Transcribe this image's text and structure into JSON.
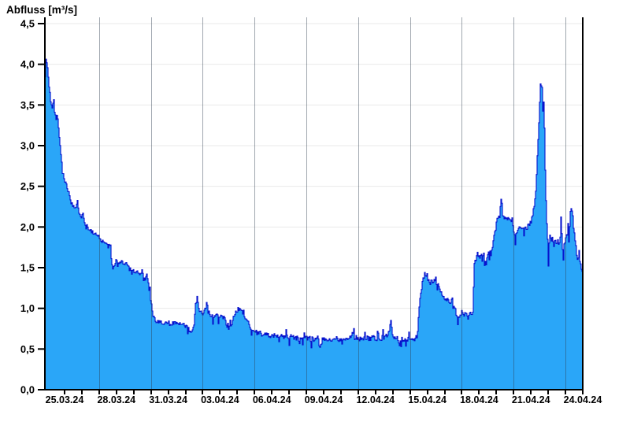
{
  "title": "Abfluss [m³/s]",
  "colors": {
    "area_fill": "#2aa6f8",
    "line": "#0713cd",
    "h_gridline": "#e9e9e9",
    "v_gridline": "rgba(45,60,78,0.45)",
    "axis": "#000000",
    "label_text": "#000000",
    "background": "#ffffff"
  },
  "chart_data": {
    "type": "area",
    "title": "Abfluss [m³/s]",
    "ylabel": "Abfluss [m³/s]",
    "xlabel": "",
    "legend": false,
    "grid": true,
    "y_axis": {
      "min": 0.0,
      "max": 4.5,
      "tick_step": 0.5,
      "tick_labels": [
        "0,0",
        "0,5",
        "1,0",
        "1,5",
        "2,0",
        "2,5",
        "3,0",
        "3,5",
        "4,0",
        "4,5"
      ]
    },
    "x_axis": {
      "tick_labels": [
        "25.03.24",
        "28.03.24",
        "31.03.24",
        "03.04.24",
        "06.04.24",
        "09.04.24",
        "12.04.24",
        "15.04.24",
        "18.04.24",
        "21.04.24",
        "24.04.24"
      ],
      "label_days": [
        0,
        3,
        6,
        9,
        12,
        15,
        18,
        21,
        24,
        27,
        30
      ],
      "gridline_days": [
        2,
        5,
        8,
        11,
        14,
        17,
        20,
        23,
        26,
        29
      ],
      "minor_tick_first_day": 0,
      "minor_tick_last_day": 30,
      "minor_tick_every_days": 1,
      "domain_days": [
        -1.14,
        30.0
      ]
    },
    "series": [
      {
        "name": "Abfluss",
        "unit": "m³/s",
        "points": [
          [
            -1.14,
            3.85
          ],
          [
            -1.09,
            4.08
          ],
          [
            -1.0,
            3.95
          ],
          [
            -0.91,
            3.72
          ],
          [
            -0.82,
            3.55
          ],
          [
            -0.73,
            3.48
          ],
          [
            -0.64,
            3.56
          ],
          [
            -0.59,
            3.4
          ],
          [
            -0.5,
            3.32
          ],
          [
            -0.46,
            3.45
          ],
          [
            -0.41,
            3.3
          ],
          [
            -0.32,
            3.1
          ],
          [
            -0.23,
            2.9
          ],
          [
            -0.14,
            2.72
          ],
          [
            -0.05,
            2.6
          ],
          [
            0.09,
            2.5
          ],
          [
            0.18,
            2.45
          ],
          [
            0.27,
            2.38
          ],
          [
            0.36,
            2.3
          ],
          [
            0.5,
            2.26
          ],
          [
            0.64,
            2.22
          ],
          [
            0.73,
            2.32
          ],
          [
            0.82,
            2.15
          ],
          [
            0.96,
            2.1
          ],
          [
            1.05,
            2.18
          ],
          [
            1.14,
            2.05
          ],
          [
            1.28,
            2.02
          ],
          [
            1.37,
            1.98
          ],
          [
            1.5,
            1.96
          ],
          [
            1.64,
            1.93
          ],
          [
            1.78,
            1.92
          ],
          [
            1.92,
            1.9
          ],
          [
            2.01,
            1.85
          ],
          [
            2.14,
            1.82
          ],
          [
            2.33,
            1.81
          ],
          [
            2.51,
            1.8
          ],
          [
            2.64,
            1.78
          ],
          [
            2.69,
            1.6
          ],
          [
            2.78,
            1.47
          ],
          [
            2.87,
            1.52
          ],
          [
            3.01,
            1.57
          ],
          [
            3.15,
            1.55
          ],
          [
            3.28,
            1.58
          ],
          [
            3.42,
            1.53
          ],
          [
            3.56,
            1.56
          ],
          [
            3.69,
            1.52
          ],
          [
            3.83,
            1.48
          ],
          [
            3.97,
            1.46
          ],
          [
            4.1,
            1.44
          ],
          [
            4.24,
            1.45
          ],
          [
            4.38,
            1.42
          ],
          [
            4.47,
            1.46
          ],
          [
            4.56,
            1.4
          ],
          [
            4.65,
            1.35
          ],
          [
            4.74,
            1.42
          ],
          [
            4.83,
            1.3
          ],
          [
            4.92,
            1.18
          ],
          [
            5.02,
            1.02
          ],
          [
            5.11,
            0.92
          ],
          [
            5.2,
            0.87
          ],
          [
            5.33,
            0.84
          ],
          [
            5.52,
            0.83
          ],
          [
            5.7,
            0.82
          ],
          [
            5.93,
            0.84
          ],
          [
            6.11,
            0.81
          ],
          [
            6.29,
            0.83
          ],
          [
            6.48,
            0.8
          ],
          [
            6.66,
            0.82
          ],
          [
            6.84,
            0.8
          ],
          [
            7.02,
            0.78
          ],
          [
            7.2,
            0.73
          ],
          [
            7.39,
            0.72
          ],
          [
            7.48,
            0.8
          ],
          [
            7.57,
            1.05
          ],
          [
            7.66,
            1.13
          ],
          [
            7.75,
            0.98
          ],
          [
            7.89,
            0.95
          ],
          [
            8.03,
            0.93
          ],
          [
            8.12,
            1.02
          ],
          [
            8.21,
            1.08
          ],
          [
            8.3,
            0.95
          ],
          [
            8.44,
            0.92
          ],
          [
            8.57,
            0.9
          ],
          [
            8.76,
            0.91
          ],
          [
            8.94,
            0.89
          ],
          [
            9.12,
            0.9
          ],
          [
            9.3,
            0.85
          ],
          [
            9.39,
            0.78
          ],
          [
            9.53,
            0.76
          ],
          [
            9.67,
            0.82
          ],
          [
            9.8,
            0.92
          ],
          [
            9.94,
            0.97
          ],
          [
            10.08,
            0.99
          ],
          [
            10.21,
            0.97
          ],
          [
            10.31,
            0.93
          ],
          [
            10.44,
            0.9
          ],
          [
            10.58,
            0.85
          ],
          [
            10.67,
            0.78
          ],
          [
            10.81,
            0.73
          ],
          [
            10.94,
            0.71
          ],
          [
            11.13,
            0.7
          ],
          [
            11.31,
            0.69
          ],
          [
            11.54,
            0.67
          ],
          [
            11.76,
            0.68
          ],
          [
            11.99,
            0.66
          ],
          [
            12.22,
            0.67
          ],
          [
            12.45,
            0.65
          ],
          [
            12.68,
            0.66
          ],
          [
            12.95,
            0.64
          ],
          [
            13.22,
            0.65
          ],
          [
            13.5,
            0.63
          ],
          [
            13.77,
            0.62
          ],
          [
            14.04,
            0.63
          ],
          [
            14.32,
            0.62
          ],
          [
            14.59,
            0.63
          ],
          [
            14.87,
            0.62
          ],
          [
            15.14,
            0.63
          ],
          [
            15.41,
            0.62
          ],
          [
            15.69,
            0.63
          ],
          [
            15.96,
            0.62
          ],
          [
            16.23,
            0.63
          ],
          [
            16.51,
            0.64
          ],
          [
            16.69,
            0.7
          ],
          [
            16.78,
            0.64
          ],
          [
            17.05,
            0.63
          ],
          [
            17.33,
            0.64
          ],
          [
            17.6,
            0.63
          ],
          [
            17.87,
            0.64
          ],
          [
            18.15,
            0.63
          ],
          [
            18.42,
            0.64
          ],
          [
            18.6,
            0.66
          ],
          [
            18.79,
            0.74
          ],
          [
            18.88,
            0.88
          ],
          [
            18.97,
            0.7
          ],
          [
            19.06,
            0.64
          ],
          [
            19.29,
            0.63
          ],
          [
            19.52,
            0.62
          ],
          [
            19.74,
            0.63
          ],
          [
            19.97,
            0.62
          ],
          [
            20.2,
            0.62
          ],
          [
            20.38,
            0.65
          ],
          [
            20.47,
            0.9
          ],
          [
            20.57,
            1.15
          ],
          [
            20.66,
            1.3
          ],
          [
            20.75,
            1.38
          ],
          [
            20.84,
            1.45
          ],
          [
            20.93,
            1.38
          ],
          [
            21.02,
            1.33
          ],
          [
            21.16,
            1.35
          ],
          [
            21.3,
            1.31
          ],
          [
            21.43,
            1.34
          ],
          [
            21.57,
            1.3
          ],
          [
            21.7,
            1.25
          ],
          [
            21.8,
            1.18
          ],
          [
            21.93,
            1.15
          ],
          [
            22.07,
            1.12
          ],
          [
            22.21,
            1.1
          ],
          [
            22.34,
            1.06
          ],
          [
            22.43,
            1.12
          ],
          [
            22.53,
            1.02
          ],
          [
            22.62,
            0.97
          ],
          [
            22.71,
            0.88
          ],
          [
            22.85,
            0.92
          ],
          [
            22.98,
            0.95
          ],
          [
            23.12,
            0.9
          ],
          [
            23.26,
            0.93
          ],
          [
            23.35,
            0.88
          ],
          [
            23.44,
            0.95
          ],
          [
            23.53,
            0.9
          ],
          [
            23.62,
            0.92
          ],
          [
            23.67,
            1.3
          ],
          [
            23.71,
            1.58
          ],
          [
            23.8,
            1.62
          ],
          [
            23.89,
            1.7
          ],
          [
            23.99,
            1.63
          ],
          [
            24.08,
            1.66
          ],
          [
            24.17,
            1.6
          ],
          [
            24.26,
            1.65
          ],
          [
            24.35,
            1.58
          ],
          [
            24.44,
            1.52
          ],
          [
            24.53,
            1.6
          ],
          [
            24.62,
            1.65
          ],
          [
            24.72,
            1.7
          ],
          [
            24.81,
            1.85
          ],
          [
            24.9,
            1.95
          ],
          [
            24.99,
            2.05
          ],
          [
            25.08,
            2.1
          ],
          [
            25.17,
            2.12
          ],
          [
            25.26,
            2.44
          ],
          [
            25.35,
            2.12
          ],
          [
            25.44,
            2.08
          ],
          [
            25.54,
            2.12
          ],
          [
            25.63,
            2.08
          ],
          [
            25.72,
            2.1
          ],
          [
            25.81,
            2.05
          ],
          [
            25.9,
            2.08
          ],
          [
            25.99,
            1.95
          ],
          [
            26.08,
            1.87
          ],
          [
            26.17,
            1.9
          ],
          [
            26.26,
            1.97
          ],
          [
            26.36,
            2.0
          ],
          [
            26.49,
            1.98
          ],
          [
            26.63,
            2.02
          ],
          [
            26.77,
            1.99
          ],
          [
            26.9,
            2.03
          ],
          [
            26.99,
            2.05
          ],
          [
            27.09,
            2.15
          ],
          [
            27.18,
            2.25
          ],
          [
            27.27,
            2.45
          ],
          [
            27.36,
            2.9
          ],
          [
            27.45,
            3.3
          ],
          [
            27.54,
            3.78
          ],
          [
            27.63,
            3.7
          ],
          [
            27.68,
            3.4
          ],
          [
            27.72,
            3.55
          ],
          [
            27.77,
            3.2
          ],
          [
            27.81,
            2.7
          ],
          [
            27.86,
            2.3
          ],
          [
            27.91,
            2.0
          ],
          [
            27.95,
            1.85
          ],
          [
            28.0,
            1.45
          ],
          [
            28.04,
            1.85
          ],
          [
            28.13,
            1.9
          ],
          [
            28.23,
            1.82
          ],
          [
            28.32,
            1.88
          ],
          [
            28.41,
            1.8
          ],
          [
            28.5,
            1.85
          ],
          [
            28.59,
            1.78
          ],
          [
            28.68,
            1.9
          ],
          [
            28.73,
            2.1
          ],
          [
            28.77,
            1.95
          ],
          [
            28.82,
            1.7
          ],
          [
            28.86,
            1.62
          ],
          [
            28.91,
            1.8
          ],
          [
            29.0,
            1.88
          ],
          [
            29.09,
            1.92
          ],
          [
            29.18,
            1.95
          ],
          [
            29.27,
            2.15
          ],
          [
            29.36,
            2.24
          ],
          [
            29.41,
            2.1
          ],
          [
            29.45,
            1.98
          ],
          [
            29.5,
            1.9
          ],
          [
            29.54,
            1.8
          ],
          [
            29.63,
            1.7
          ],
          [
            29.73,
            1.6
          ],
          [
            29.77,
            1.68
          ],
          [
            29.82,
            1.55
          ],
          [
            29.91,
            1.48
          ],
          [
            30.0,
            1.4
          ]
        ]
      }
    ],
    "noise_segments": [
      {
        "from_day": -1.14,
        "to_day": -0.9,
        "amp": 0.005
      },
      {
        "from_day": -0.9,
        "to_day": 2.6,
        "amp": 0.022
      },
      {
        "from_day": 2.6,
        "to_day": 4.9,
        "amp": 0.018
      },
      {
        "from_day": 4.9,
        "to_day": 10.9,
        "amp": 0.028
      },
      {
        "from_day": 10.9,
        "to_day": 20.3,
        "amp": 0.032
      },
      {
        "from_day": 20.3,
        "to_day": 23.6,
        "amp": 0.028
      },
      {
        "from_day": 23.6,
        "to_day": 27.15,
        "amp": 0.035
      },
      {
        "from_day": 27.15,
        "to_day": 27.95,
        "amp": 0.015
      },
      {
        "from_day": 27.95,
        "to_day": 30.0,
        "amp": 0.05
      }
    ]
  }
}
